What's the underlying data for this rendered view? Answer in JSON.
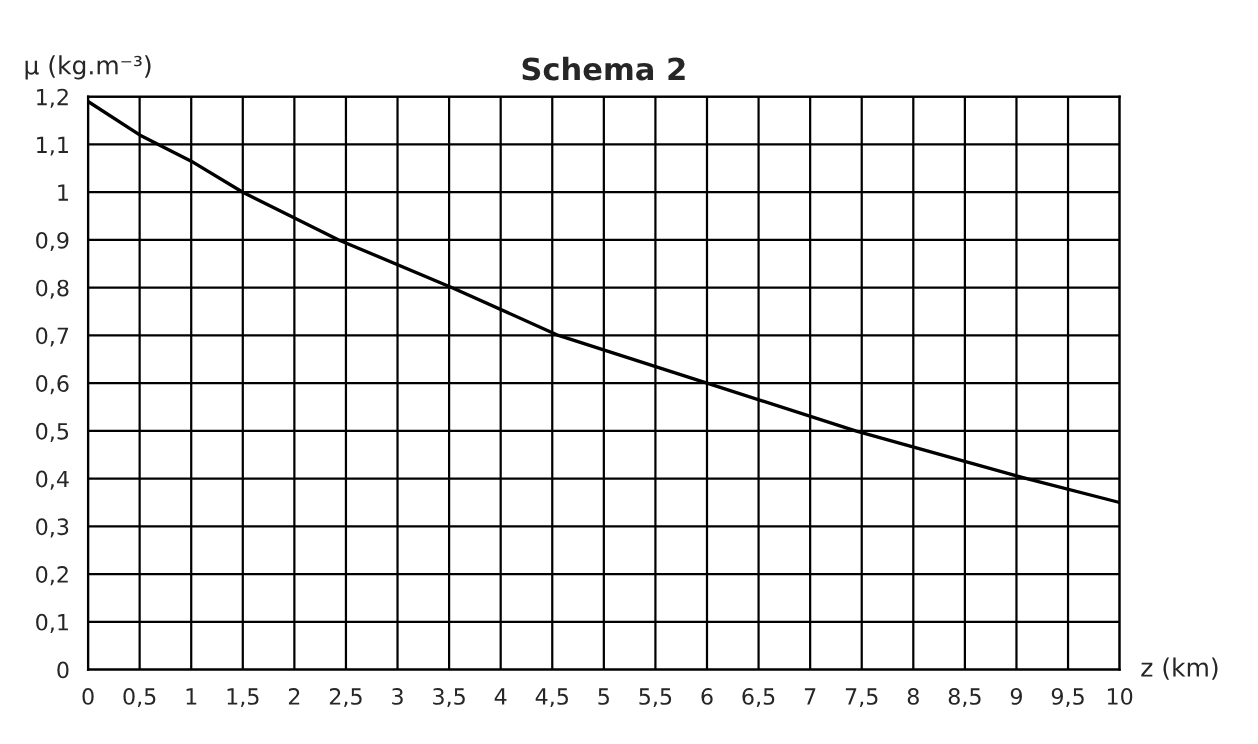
{
  "chart_data": {
    "type": "line",
    "title": "Schema 2",
    "xlabel": "z (km)",
    "ylabel": "μ (kg.m⁻³)",
    "x": [
      0,
      0.5,
      1,
      1.5,
      2.43,
      3.53,
      4.56,
      6.0,
      7.44,
      9.1,
      10
    ],
    "series": [
      {
        "color": "#000000",
        "values": [
          1.19,
          1.12,
          1.065,
          1.0,
          0.9,
          0.8,
          0.7,
          0.6,
          0.5,
          0.4,
          0.35
        ]
      }
    ],
    "xlim": [
      0,
      10
    ],
    "ylim": [
      0,
      1.2
    ],
    "xticks": [
      0,
      {
        "value": 0.5,
        "label": "0,5"
      },
      1,
      {
        "value": 1.5,
        "label": "1,5"
      },
      2,
      {
        "value": 2.5,
        "label": "2,5"
      },
      3,
      {
        "value": 3.5,
        "label": "3,5"
      },
      4,
      {
        "value": 4.5,
        "label": "4,5"
      },
      5,
      {
        "value": 5.5,
        "label": "5,5"
      },
      6,
      {
        "value": 6.5,
        "label": "6,5"
      },
      7,
      {
        "value": 7.5,
        "label": "7,5"
      },
      8,
      {
        "value": 8.5,
        "label": "8,5"
      },
      9,
      {
        "value": 9.5,
        "label": "9,5"
      },
      10
    ],
    "yticks": [
      0,
      {
        "value": 0.1,
        "label": "0,1"
      },
      {
        "value": 0.2,
        "label": "0,2"
      },
      {
        "value": 0.3,
        "label": "0,3"
      },
      {
        "value": 0.4,
        "label": "0,4"
      },
      {
        "value": 0.5,
        "label": "0,5"
      },
      {
        "value": 0.6,
        "label": "0,6"
      },
      {
        "value": 0.7,
        "label": "0,7"
      },
      {
        "value": 0.8,
        "label": "0,8"
      },
      {
        "value": 0.9,
        "label": "0,9"
      },
      1,
      {
        "value": 1.1,
        "label": "1,1"
      },
      {
        "value": 1.2,
        "label": "1,2"
      }
    ],
    "grid": true,
    "marker": "none",
    "line_style": "solid",
    "legend": false
  }
}
